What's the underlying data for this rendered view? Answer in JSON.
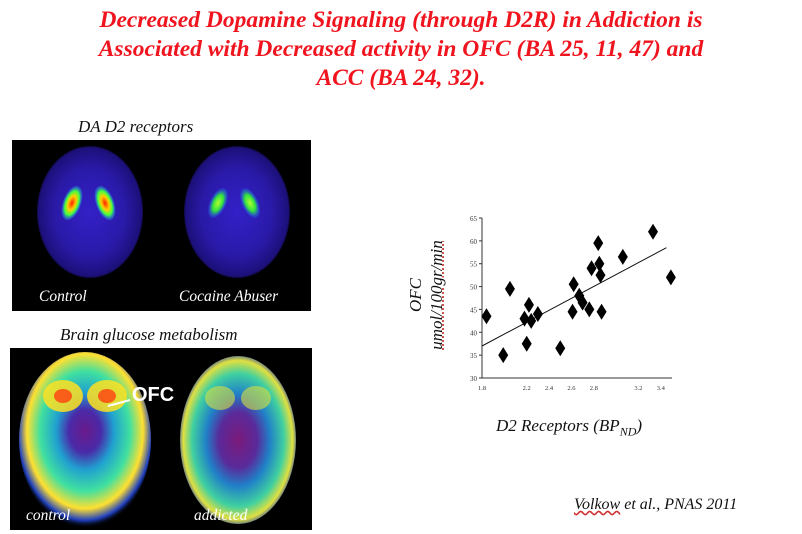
{
  "title": {
    "line1": "Decreased Dopamine Signaling (through D2R) in Addiction is",
    "line2": "Associated with Decreased activity in OFC (BA 25, 11, 47) and",
    "line3": "ACC (BA 24, 32)."
  },
  "top_panel": {
    "caption": "DA D2 receptors",
    "label_left": "Control",
    "label_right": "Cocaine Abuser"
  },
  "bottom_panel": {
    "caption": "Brain glucose metabolism",
    "region_label": "OFC",
    "label_left": "control",
    "label_right": "addicted"
  },
  "chart_data": {
    "type": "scatter",
    "xlabel_main": "D2 Receptors (BP",
    "xlabel_sub": "ND",
    "xlabel_end": ")",
    "ylabel_line1": "OFC",
    "ylabel_line2": "umol/100gr/min",
    "ylim": [
      30,
      65
    ],
    "yticks": [
      "30",
      "35",
      "40",
      "45",
      "50",
      "55",
      "60",
      "65"
    ],
    "xlim": [
      1.8,
      3.5
    ],
    "xticks": [
      {
        "value": 1.8,
        "label": "1.8"
      },
      {
        "value": 2.2,
        "label": "2.2"
      },
      {
        "value": 2.4,
        "label": "2.4"
      },
      {
        "value": 2.6,
        "label": "2.6"
      },
      {
        "value": 2.8,
        "label": "2.8"
      },
      {
        "value": 3.2,
        "label": "3.2"
      },
      {
        "value": 3.4,
        "label": "3.4"
      }
    ],
    "marker": "diamond",
    "points": [
      {
        "x": 1.84,
        "y": 43.5
      },
      {
        "x": 1.99,
        "y": 35.0
      },
      {
        "x": 2.05,
        "y": 49.5
      },
      {
        "x": 2.18,
        "y": 43.0
      },
      {
        "x": 2.2,
        "y": 37.5
      },
      {
        "x": 2.22,
        "y": 46.0
      },
      {
        "x": 2.24,
        "y": 42.5
      },
      {
        "x": 2.3,
        "y": 44.0
      },
      {
        "x": 2.5,
        "y": 36.5
      },
      {
        "x": 2.61,
        "y": 44.5
      },
      {
        "x": 2.62,
        "y": 50.5
      },
      {
        "x": 2.67,
        "y": 48.0
      },
      {
        "x": 2.7,
        "y": 46.5
      },
      {
        "x": 2.76,
        "y": 45.0
      },
      {
        "x": 2.78,
        "y": 54.0
      },
      {
        "x": 2.84,
        "y": 59.5
      },
      {
        "x": 2.85,
        "y": 55.0
      },
      {
        "x": 2.86,
        "y": 52.5
      },
      {
        "x": 2.87,
        "y": 44.5
      },
      {
        "x": 3.06,
        "y": 56.5
      },
      {
        "x": 3.33,
        "y": 62.0
      },
      {
        "x": 3.49,
        "y": 52.0
      }
    ],
    "trendline": {
      "x1": 1.8,
      "y1": 37.0,
      "x2": 3.45,
      "y2": 58.5
    }
  },
  "citation": {
    "author": "Volkow",
    "rest": " et al., PNAS 2011"
  }
}
